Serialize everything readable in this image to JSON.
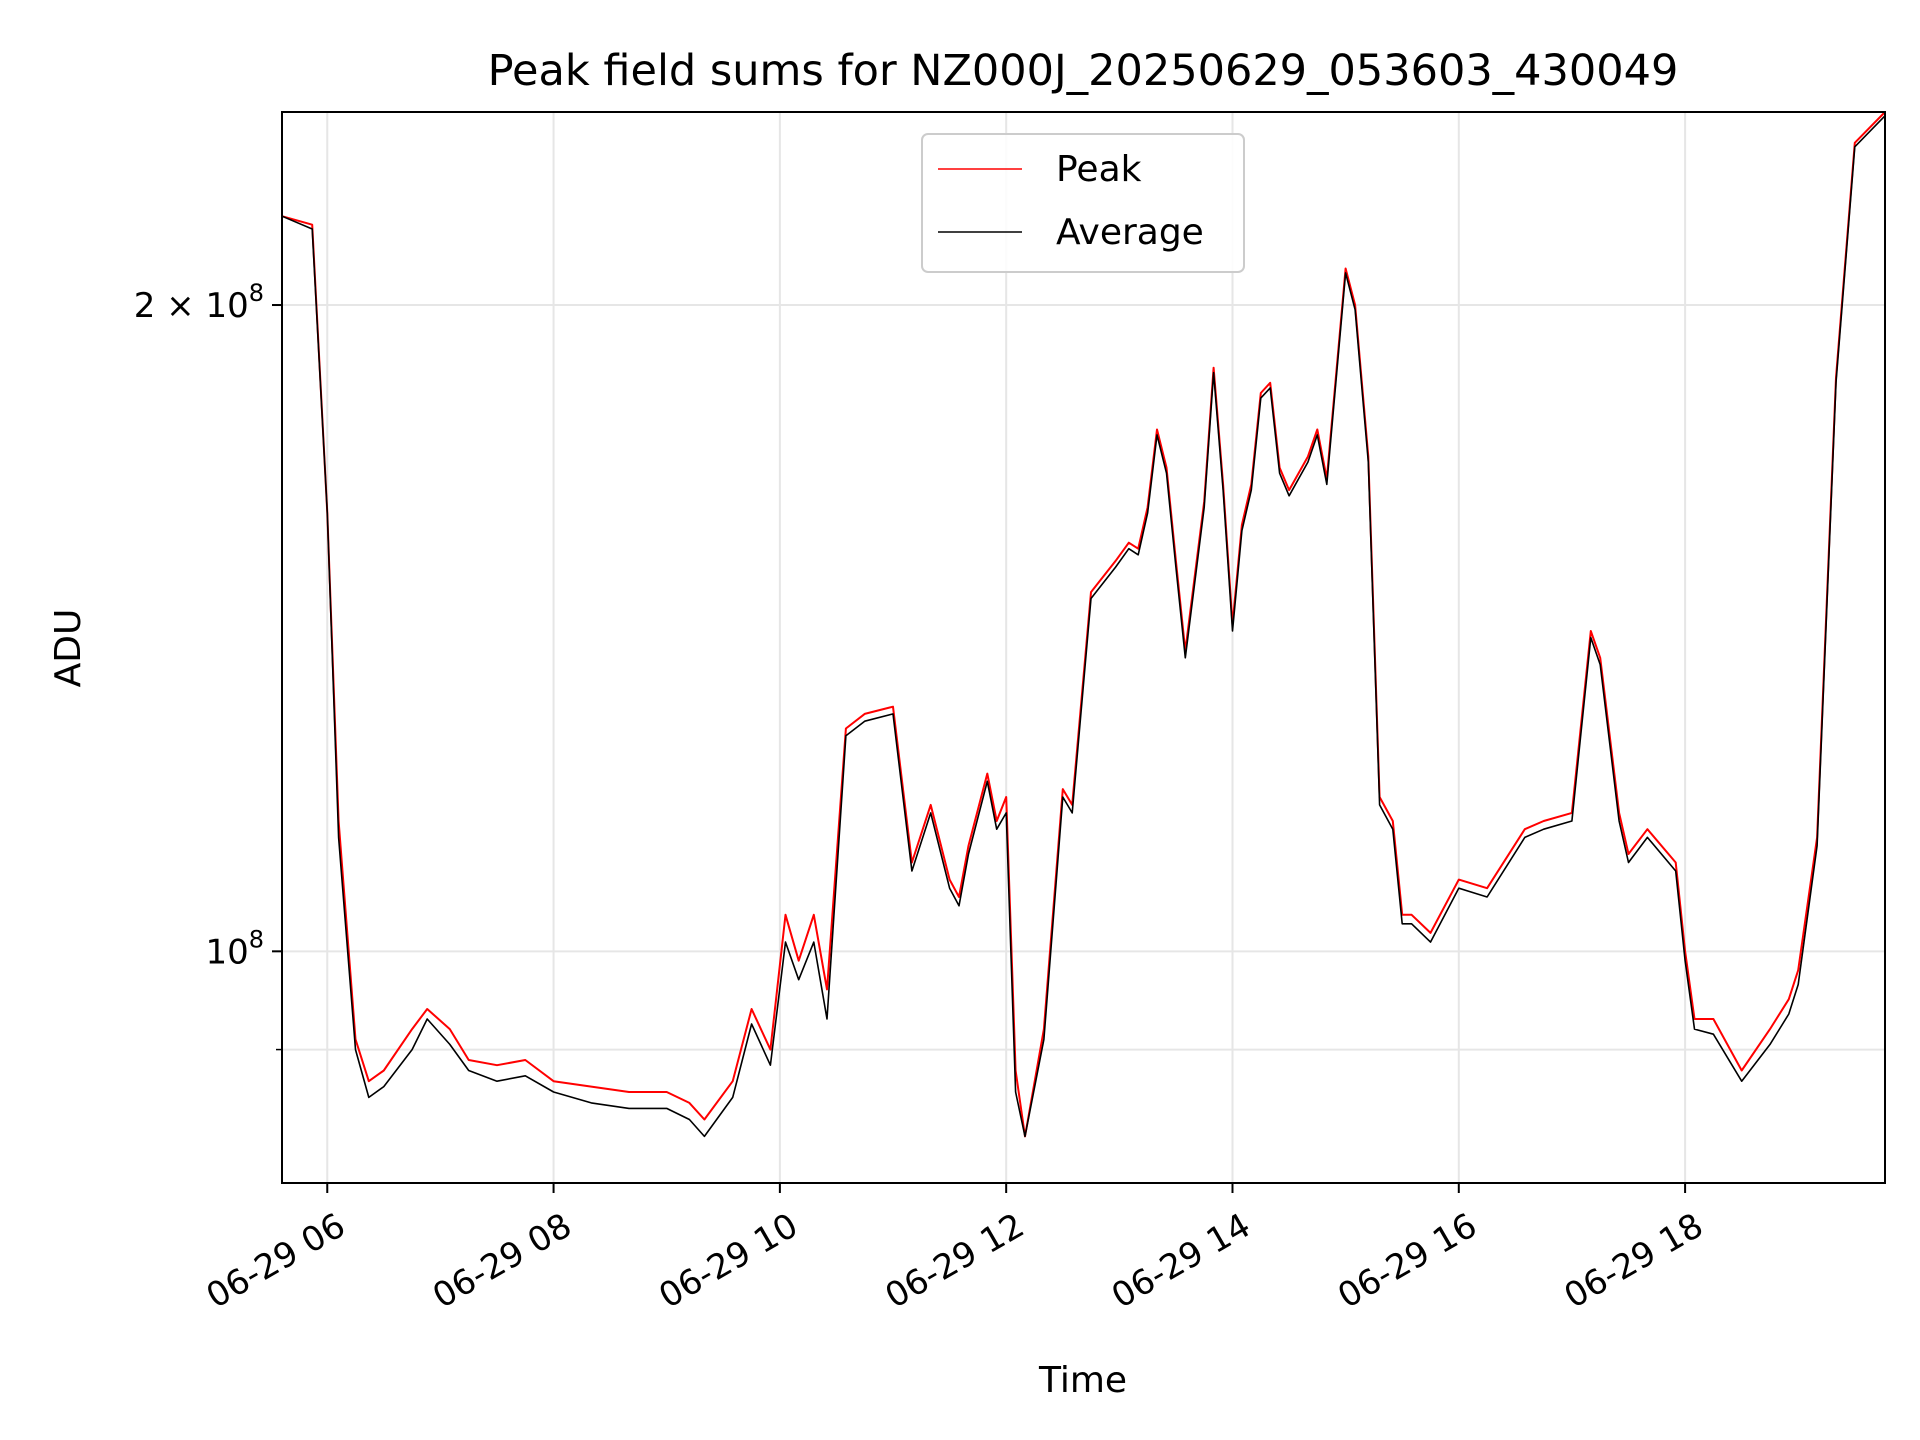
{
  "chart_data": {
    "type": "line",
    "title": "Peak field sums for NZ000J_20250629_053603_430049",
    "xlabel": "Time",
    "ylabel": "ADU",
    "yscale": "log",
    "grid": true,
    "legend_position": "top-center",
    "xlim": [
      "2025-06-29 05:36",
      "2025-06-29 19:46"
    ],
    "ylim": [
      78000000,
      246000000
    ],
    "x_ticks": [
      {
        "t": "2025-06-29 06:00",
        "label": "06-29 06"
      },
      {
        "t": "2025-06-29 08:00",
        "label": "06-29 08"
      },
      {
        "t": "2025-06-29 10:00",
        "label": "06-29 10"
      },
      {
        "t": "2025-06-29 12:00",
        "label": "06-29 12"
      },
      {
        "t": "2025-06-29 14:00",
        "label": "06-29 14"
      },
      {
        "t": "2025-06-29 16:00",
        "label": "06-29 16"
      },
      {
        "t": "2025-06-29 18:00",
        "label": "06-29 18"
      }
    ],
    "y_major_ticks": [
      {
        "value": 100000000,
        "base": "10",
        "exp": "8"
      },
      {
        "value": 200000000,
        "base": "2 × 10",
        "exp": "8"
      }
    ],
    "y_minor_ticks": [
      90000000
    ],
    "series": [
      {
        "name": "Peak",
        "color": "#ff0000",
        "x": [
          "2025-06-29 05:36",
          "2025-06-29 05:52",
          "2025-06-29 06:00",
          "2025-06-29 06:06",
          "2025-06-29 06:15",
          "2025-06-29 06:22",
          "2025-06-29 06:30",
          "2025-06-29 06:45",
          "2025-06-29 06:53",
          "2025-06-29 07:05",
          "2025-06-29 07:15",
          "2025-06-29 07:30",
          "2025-06-29 07:45",
          "2025-06-29 08:00",
          "2025-06-29 08:20",
          "2025-06-29 08:40",
          "2025-06-29 09:00",
          "2025-06-29 09:12",
          "2025-06-29 09:20",
          "2025-06-29 09:35",
          "2025-06-29 09:45",
          "2025-06-29 09:55",
          "2025-06-29 10:03",
          "2025-06-29 10:10",
          "2025-06-29 10:18",
          "2025-06-29 10:25",
          "2025-06-29 10:35",
          "2025-06-29 10:45",
          "2025-06-29 11:00",
          "2025-06-29 11:10",
          "2025-06-29 11:20",
          "2025-06-29 11:30",
          "2025-06-29 11:35",
          "2025-06-29 11:40",
          "2025-06-29 11:50",
          "2025-06-29 11:55",
          "2025-06-29 12:00",
          "2025-06-29 12:05",
          "2025-06-29 12:10",
          "2025-06-29 12:20",
          "2025-06-29 12:30",
          "2025-06-29 12:35",
          "2025-06-29 12:45",
          "2025-06-29 12:58",
          "2025-06-29 13:05",
          "2025-06-29 13:10",
          "2025-06-29 13:15",
          "2025-06-29 13:20",
          "2025-06-29 13:25",
          "2025-06-29 13:30",
          "2025-06-29 13:35",
          "2025-06-29 13:45",
          "2025-06-29 13:50",
          "2025-06-29 13:55",
          "2025-06-29 14:00",
          "2025-06-29 14:05",
          "2025-06-29 14:10",
          "2025-06-29 14:15",
          "2025-06-29 14:20",
          "2025-06-29 14:25",
          "2025-06-29 14:30",
          "2025-06-29 14:40",
          "2025-06-29 14:45",
          "2025-06-29 14:50",
          "2025-06-29 15:00",
          "2025-06-29 15:05",
          "2025-06-29 15:12",
          "2025-06-29 15:18",
          "2025-06-29 15:25",
          "2025-06-29 15:30",
          "2025-06-29 15:35",
          "2025-06-29 15:45",
          "2025-06-29 16:00",
          "2025-06-29 16:15",
          "2025-06-29 16:35",
          "2025-06-29 16:45",
          "2025-06-29 17:00",
          "2025-06-29 17:10",
          "2025-06-29 17:15",
          "2025-06-29 17:25",
          "2025-06-29 17:30",
          "2025-06-29 17:40",
          "2025-06-29 17:55",
          "2025-06-29 18:00",
          "2025-06-29 18:05",
          "2025-06-29 18:15",
          "2025-06-29 18:30",
          "2025-06-29 18:45",
          "2025-06-29 18:55",
          "2025-06-29 19:00",
          "2025-06-29 19:10",
          "2025-06-29 19:20",
          "2025-06-29 19:30",
          "2025-06-29 19:46"
        ],
        "y": [
          220000000,
          218000000,
          160000000,
          115000000,
          91000000,
          87000000,
          88000000,
          92000000,
          94000000,
          92000000,
          89000000,
          88500000,
          89000000,
          87000000,
          86500000,
          86000000,
          86000000,
          85000000,
          83500000,
          87000000,
          94000000,
          90000000,
          104000000,
          99000000,
          104000000,
          96000000,
          127000000,
          129000000,
          130000000,
          110000000,
          117000000,
          108000000,
          106000000,
          112000000,
          121000000,
          115000000,
          118000000,
          88000000,
          82000000,
          92000000,
          119000000,
          117000000,
          147000000,
          152000000,
          155000000,
          154000000,
          161000000,
          175000000,
          168000000,
          152000000,
          138000000,
          162000000,
          187000000,
          165000000,
          142000000,
          158000000,
          165000000,
          182000000,
          184000000,
          168000000,
          164000000,
          170000000,
          175000000,
          166000000,
          208000000,
          200000000,
          170000000,
          118000000,
          115000000,
          104000000,
          104000000,
          102000000,
          108000000,
          107000000,
          114000000,
          115000000,
          116000000,
          141000000,
          137000000,
          116000000,
          111000000,
          114000000,
          110000000,
          100000000,
          93000000,
          93000000,
          88000000,
          92000000,
          95000000,
          98000000,
          113000000,
          185000000,
          238000000,
          246000000
        ]
      },
      {
        "name": "Average",
        "color": "#000000",
        "x": [
          "2025-06-29 05:36",
          "2025-06-29 05:52",
          "2025-06-29 06:00",
          "2025-06-29 06:06",
          "2025-06-29 06:15",
          "2025-06-29 06:22",
          "2025-06-29 06:30",
          "2025-06-29 06:45",
          "2025-06-29 06:53",
          "2025-06-29 07:05",
          "2025-06-29 07:15",
          "2025-06-29 07:30",
          "2025-06-29 07:45",
          "2025-06-29 08:00",
          "2025-06-29 08:20",
          "2025-06-29 08:40",
          "2025-06-29 09:00",
          "2025-06-29 09:12",
          "2025-06-29 09:20",
          "2025-06-29 09:35",
          "2025-06-29 09:45",
          "2025-06-29 09:55",
          "2025-06-29 10:03",
          "2025-06-29 10:10",
          "2025-06-29 10:18",
          "2025-06-29 10:25",
          "2025-06-29 10:35",
          "2025-06-29 10:45",
          "2025-06-29 11:00",
          "2025-06-29 11:10",
          "2025-06-29 11:20",
          "2025-06-29 11:30",
          "2025-06-29 11:35",
          "2025-06-29 11:40",
          "2025-06-29 11:50",
          "2025-06-29 11:55",
          "2025-06-29 12:00",
          "2025-06-29 12:05",
          "2025-06-29 12:10",
          "2025-06-29 12:20",
          "2025-06-29 12:30",
          "2025-06-29 12:35",
          "2025-06-29 12:45",
          "2025-06-29 12:58",
          "2025-06-29 13:05",
          "2025-06-29 13:10",
          "2025-06-29 13:15",
          "2025-06-29 13:20",
          "2025-06-29 13:25",
          "2025-06-29 13:30",
          "2025-06-29 13:35",
          "2025-06-29 13:45",
          "2025-06-29 13:50",
          "2025-06-29 13:55",
          "2025-06-29 14:00",
          "2025-06-29 14:05",
          "2025-06-29 14:10",
          "2025-06-29 14:15",
          "2025-06-29 14:20",
          "2025-06-29 14:25",
          "2025-06-29 14:30",
          "2025-06-29 14:40",
          "2025-06-29 14:45",
          "2025-06-29 14:50",
          "2025-06-29 15:00",
          "2025-06-29 15:05",
          "2025-06-29 15:12",
          "2025-06-29 15:18",
          "2025-06-29 15:25",
          "2025-06-29 15:30",
          "2025-06-29 15:35",
          "2025-06-29 15:45",
          "2025-06-29 16:00",
          "2025-06-29 16:15",
          "2025-06-29 16:35",
          "2025-06-29 16:45",
          "2025-06-29 17:00",
          "2025-06-29 17:10",
          "2025-06-29 17:15",
          "2025-06-29 17:25",
          "2025-06-29 17:30",
          "2025-06-29 17:40",
          "2025-06-29 17:55",
          "2025-06-29 18:00",
          "2025-06-29 18:05",
          "2025-06-29 18:15",
          "2025-06-29 18:30",
          "2025-06-29 18:45",
          "2025-06-29 18:55",
          "2025-06-29 19:00",
          "2025-06-29 19:10",
          "2025-06-29 19:20",
          "2025-06-29 19:30",
          "2025-06-29 19:46"
        ],
        "y": [
          220000000,
          217000000,
          160000000,
          113000000,
          90000000,
          85500000,
          86500000,
          90000000,
          93000000,
          90500000,
          88000000,
          87000000,
          87500000,
          86000000,
          85000000,
          84500000,
          84500000,
          83500000,
          82000000,
          85500000,
          92500000,
          88500000,
          101000000,
          97000000,
          101000000,
          93000000,
          126000000,
          128000000,
          129000000,
          109000000,
          116000000,
          107000000,
          105000000,
          111000000,
          120000000,
          114000000,
          116000000,
          86000000,
          82000000,
          91000000,
          118000000,
          116000000,
          146000000,
          151000000,
          154000000,
          153000000,
          160000000,
          174000000,
          167000000,
          151000000,
          137000000,
          161000000,
          186000000,
          164000000,
          141000000,
          157000000,
          164000000,
          181000000,
          183000000,
          167000000,
          163000000,
          169000000,
          174000000,
          165000000,
          207000000,
          199000000,
          169000000,
          117000000,
          114000000,
          103000000,
          103000000,
          101000000,
          107000000,
          106000000,
          113000000,
          114000000,
          115000000,
          140000000,
          136000000,
          115000000,
          110000000,
          113000000,
          109000000,
          99000000,
          92000000,
          91500000,
          87000000,
          90500000,
          93500000,
          96500000,
          112000000,
          184000000,
          237000000,
          245000000
        ]
      }
    ]
  }
}
